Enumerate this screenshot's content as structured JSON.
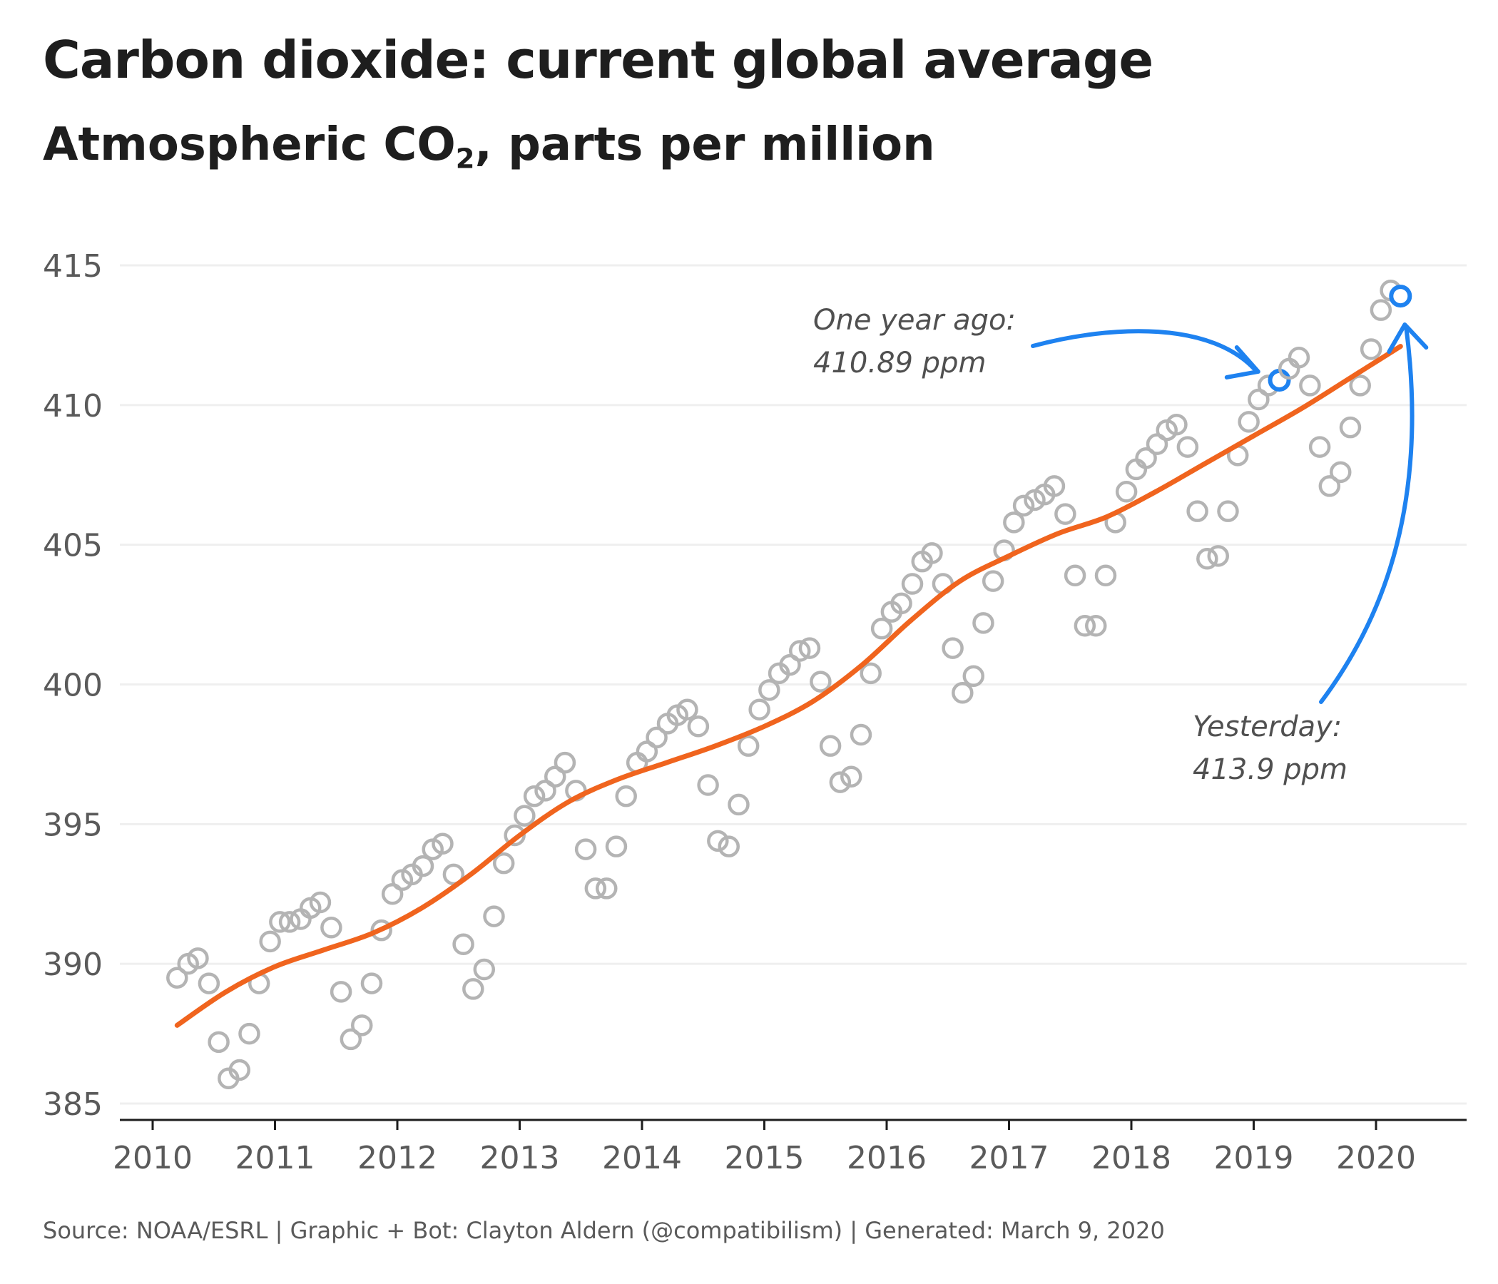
{
  "chart_data": {
    "type": "scatter",
    "title": "Carbon dioxide: current global average",
    "subtitle_main": "Atmospheric CO",
    "subtitle_sub": "2",
    "subtitle_rest": ", parts per million",
    "xlabel": "",
    "ylabel": "",
    "ylim": [
      385,
      415
    ],
    "xlim": [
      2009.8,
      2020.8
    ],
    "yticks": [
      385,
      390,
      395,
      400,
      405,
      410,
      415
    ],
    "xticks": [
      2010,
      2011,
      2012,
      2013,
      2014,
      2015,
      2016,
      2017,
      2018,
      2019,
      2020
    ],
    "grid": "horizontal",
    "colors": {
      "points": "#b4b4b4",
      "trend": "#f0641e",
      "highlight": "#1e82f0",
      "grid": "#efefef",
      "axis": "#1e1e1e"
    },
    "series": [
      {
        "type": "scatter",
        "x": [
          2010.2,
          2010.29,
          2010.37,
          2010.46,
          2010.54,
          2010.62,
          2010.71,
          2010.79,
          2010.87,
          2010.96,
          2011.04,
          2011.12,
          2011.21,
          2011.29,
          2011.37,
          2011.46,
          2011.54,
          2011.62,
          2011.71,
          2011.79,
          2011.87,
          2011.96,
          2012.04,
          2012.12,
          2012.21,
          2012.29,
          2012.37,
          2012.46,
          2012.54,
          2012.62,
          2012.71,
          2012.79,
          2012.87,
          2012.96,
          2013.04,
          2013.12,
          2013.21,
          2013.29,
          2013.37,
          2013.46,
          2013.54,
          2013.62,
          2013.71,
          2013.79,
          2013.87,
          2013.96,
          2014.04,
          2014.12,
          2014.21,
          2014.29,
          2014.37,
          2014.46,
          2014.54,
          2014.62,
          2014.71,
          2014.79,
          2014.87,
          2014.96,
          2015.04,
          2015.12,
          2015.21,
          2015.29,
          2015.37,
          2015.46,
          2015.54,
          2015.62,
          2015.71,
          2015.79,
          2015.87,
          2015.96,
          2016.04,
          2016.12,
          2016.21,
          2016.29,
          2016.37,
          2016.46,
          2016.54,
          2016.62,
          2016.71,
          2016.79,
          2016.87,
          2016.96,
          2017.04,
          2017.12,
          2017.21,
          2017.29,
          2017.37,
          2017.46,
          2017.54,
          2017.62,
          2017.71,
          2017.79,
          2017.87,
          2017.96,
          2018.04,
          2018.12,
          2018.21,
          2018.29,
          2018.37,
          2018.46,
          2018.54,
          2018.62,
          2018.71,
          2018.79,
          2018.87,
          2018.96,
          2019.04,
          2019.12,
          2019.21,
          2019.29,
          2019.37,
          2019.46,
          2019.54,
          2019.62,
          2019.71,
          2019.79,
          2019.87,
          2019.96,
          2020.04,
          2020.12,
          2020.2
        ],
        "y": [
          389.5,
          390.0,
          390.2,
          389.3,
          387.2,
          385.9,
          386.2,
          387.5,
          389.3,
          390.8,
          391.5,
          391.5,
          391.6,
          392.0,
          392.2,
          391.3,
          389.0,
          387.3,
          387.8,
          389.3,
          391.2,
          392.5,
          393.0,
          393.2,
          393.5,
          394.1,
          394.3,
          393.2,
          390.7,
          389.1,
          389.8,
          391.7,
          393.6,
          394.6,
          395.3,
          396.0,
          396.2,
          396.7,
          397.2,
          396.2,
          394.1,
          392.7,
          392.7,
          394.2,
          396.0,
          397.2,
          397.6,
          398.1,
          398.6,
          398.9,
          399.1,
          398.5,
          396.4,
          394.4,
          394.2,
          395.7,
          397.8,
          399.1,
          399.8,
          400.4,
          400.7,
          401.2,
          401.3,
          400.1,
          397.8,
          396.5,
          396.7,
          398.2,
          400.4,
          402.0,
          402.6,
          402.9,
          403.6,
          404.4,
          404.7,
          403.6,
          401.3,
          399.7,
          400.3,
          402.2,
          403.7,
          404.8,
          405.8,
          406.4,
          406.6,
          406.8,
          407.1,
          406.1,
          403.9,
          402.1,
          402.1,
          403.9,
          405.8,
          406.9,
          407.7,
          408.1,
          408.6,
          409.1,
          409.3,
          408.5,
          406.2,
          404.5,
          404.6,
          406.2,
          408.2,
          409.4,
          410.2,
          410.7,
          410.89,
          411.3,
          411.7,
          410.7,
          408.5,
          407.1,
          407.6,
          409.2,
          410.7,
          412.0,
          413.4,
          414.1,
          413.9
        ]
      },
      {
        "type": "line",
        "name": "trend",
        "x": [
          2010.2,
          2010.6,
          2011.0,
          2011.4,
          2011.8,
          2012.2,
          2012.6,
          2013.0,
          2013.4,
          2013.8,
          2014.2,
          2014.6,
          2015.0,
          2015.4,
          2015.8,
          2016.2,
          2016.6,
          2017.0,
          2017.4,
          2017.8,
          2018.2,
          2018.6,
          2019.0,
          2019.4,
          2019.8,
          2020.2
        ],
        "y": [
          387.8,
          389.0,
          389.9,
          390.5,
          391.1,
          392.0,
          393.2,
          394.6,
          395.8,
          396.6,
          397.2,
          397.8,
          398.5,
          399.4,
          400.7,
          402.3,
          403.7,
          404.6,
          405.4,
          406.0,
          406.9,
          407.9,
          408.9,
          409.9,
          411.0,
          412.1
        ]
      }
    ],
    "annotations": [
      {
        "line1": "One year ago:",
        "line2": "410.89 ppm",
        "x": 2019.2,
        "y": 410.89
      },
      {
        "line1": "Yesterday:",
        "line2": "413.9 ppm",
        "x": 2020.2,
        "y": 413.9
      }
    ],
    "source": "Source: NOAA/ESRL | Graphic + Bot: Clayton Aldern (@compatibilism) | Generated: March 9, 2020"
  }
}
